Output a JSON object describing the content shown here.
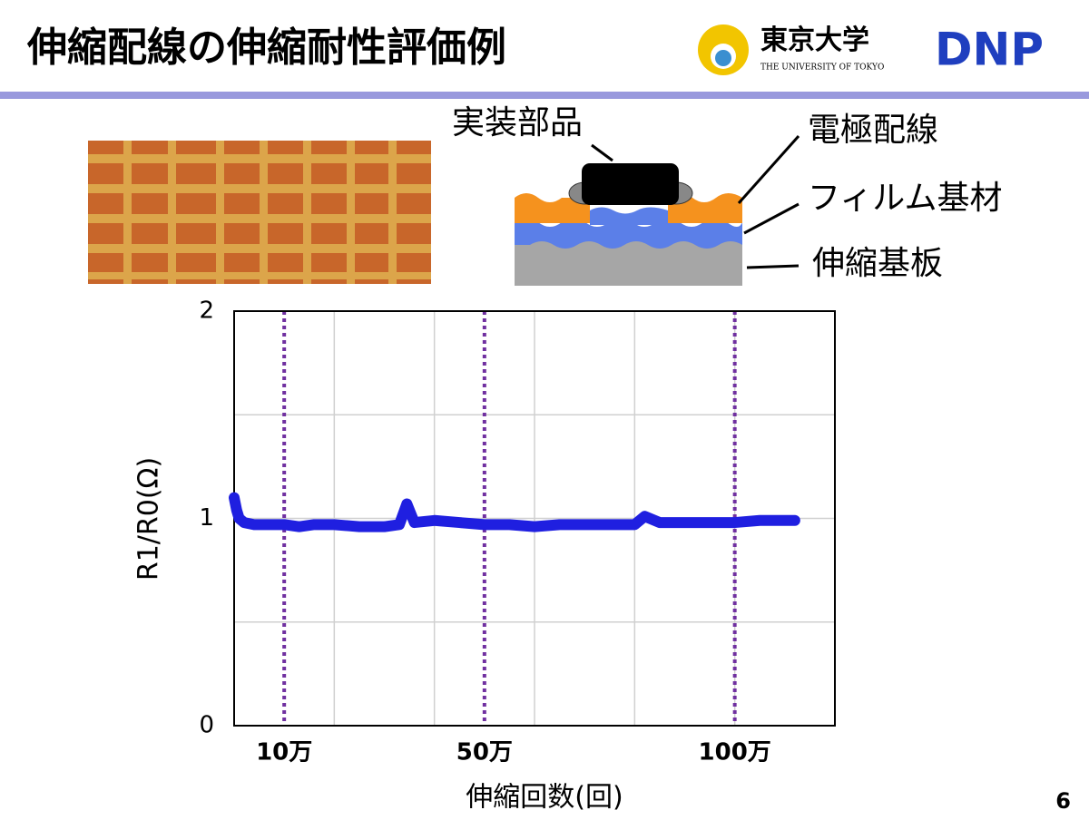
{
  "slide": {
    "title": "伸縮配線の伸縮耐性評価例",
    "logos": {
      "university": "東京大学",
      "university_en": "THE UNIVERSITY OF TOKYO",
      "company": "DNP"
    },
    "diagram": {
      "component": "実装部品",
      "electrode": "電極配線",
      "film": "フィルム基材",
      "substrate": "伸縮基板"
    },
    "page_number": 6
  },
  "chart_data": {
    "type": "line",
    "x_label": "伸縮回数(回)",
    "y_label": "R1/R0(Ω)",
    "xlim": [
      0,
      1200000
    ],
    "ylim": [
      0,
      2
    ],
    "xticks": [
      {
        "value": 100000,
        "label": "10万"
      },
      {
        "value": 500000,
        "label": "50万"
      },
      {
        "value": 1000000,
        "label": "100万"
      }
    ],
    "yticks": [
      0,
      1,
      2
    ],
    "xgrid": [
      200000,
      400000,
      600000,
      800000,
      1000000
    ],
    "ygrid": [
      0.5,
      1,
      1.5
    ],
    "xtick_line_color": "#7030a0",
    "series": [
      {
        "color": "#1f1fe0",
        "x": [
          0,
          5000,
          10000,
          20000,
          40000,
          60000,
          80000,
          100000,
          130000,
          160000,
          200000,
          250000,
          300000,
          330000,
          345000,
          360000,
          400000,
          450000,
          500000,
          550000,
          600000,
          650000,
          700000,
          750000,
          800000,
          820000,
          850000,
          900000,
          950000,
          1000000,
          1050000,
          1100000,
          1120000
        ],
        "values": [
          1.1,
          1.04,
          1.0,
          0.98,
          0.97,
          0.97,
          0.97,
          0.97,
          0.96,
          0.97,
          0.97,
          0.96,
          0.96,
          0.97,
          1.07,
          0.98,
          0.99,
          0.98,
          0.97,
          0.97,
          0.96,
          0.97,
          0.97,
          0.97,
          0.97,
          1.01,
          0.98,
          0.98,
          0.98,
          0.98,
          0.99,
          0.99,
          0.99
        ]
      }
    ]
  }
}
